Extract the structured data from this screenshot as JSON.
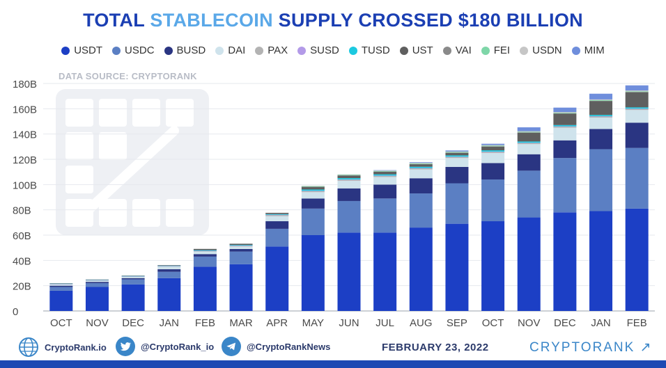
{
  "title": {
    "part1": "TOTAL ",
    "accent": "STABLECOIN",
    "part2": " SUPPLY CROSSED $180 BILLION"
  },
  "source": "DATA SOURCE: CRYPTORANK",
  "legend": [
    {
      "name": "USDT",
      "color": "#1c3fc5"
    },
    {
      "name": "USDC",
      "color": "#5b7fc3"
    },
    {
      "name": "BUSD",
      "color": "#2a3582"
    },
    {
      "name": "DAI",
      "color": "#cfe3ec"
    },
    {
      "name": "PAX",
      "color": "#b3b3b3"
    },
    {
      "name": "SUSD",
      "color": "#b39ae8"
    },
    {
      "name": "TUSD",
      "color": "#1cc9e0"
    },
    {
      "name": "UST",
      "color": "#5f5f5f"
    },
    {
      "name": "VAI",
      "color": "#8a8a8a"
    },
    {
      "name": "FEI",
      "color": "#7ed6a8"
    },
    {
      "name": "USDN",
      "color": "#c6c6c6"
    },
    {
      "name": "MIM",
      "color": "#6f8edc"
    }
  ],
  "footer": {
    "site": "CryptoRank.io",
    "twitter": "@CryptoRank_io",
    "telegram": "@CryptoRankNews",
    "date": "FEBRUARY 23, 2022",
    "brand": "CRYPTORANK ↗"
  },
  "chart_data": {
    "type": "bar",
    "stacked": true,
    "categories": [
      "OCT",
      "NOV",
      "DEC",
      "JAN",
      "FEB",
      "MAR",
      "APR",
      "MAY",
      "JUN",
      "JUL",
      "AUG",
      "SEP",
      "OCT",
      "NOV",
      "DEC",
      "JAN",
      "FEB"
    ],
    "y_ticks": [
      "0",
      "20B",
      "40B",
      "60B",
      "80B",
      "100B",
      "120B",
      "140B",
      "160B",
      "180B"
    ],
    "ylim": [
      0,
      180
    ],
    "grid": true,
    "series": [
      {
        "name": "USDT",
        "color": "#1c3fc5",
        "values": [
          16,
          19,
          21,
          26,
          35,
          37,
          51,
          60,
          62,
          62,
          66,
          69,
          71,
          74,
          78,
          79,
          81
        ]
      },
      {
        "name": "USDC",
        "color": "#5b7fc3",
        "values": [
          3,
          3,
          4,
          5,
          8,
          10,
          14,
          21,
          25,
          27,
          27,
          32,
          33,
          37,
          43,
          49,
          48
        ]
      },
      {
        "name": "BUSD",
        "color": "#2a3582",
        "values": [
          1,
          1,
          1,
          2,
          2,
          2,
          6,
          8,
          10,
          11,
          12,
          13,
          13,
          13,
          14,
          16,
          20
        ]
      },
      {
        "name": "DAI",
        "color": "#cfe3ec",
        "values": [
          1,
          1,
          1,
          2,
          2,
          2,
          4,
          5,
          6,
          6,
          7,
          7,
          8,
          8,
          10,
          9,
          10
        ]
      },
      {
        "name": "PAX",
        "color": "#b3b3b3",
        "values": [
          0.3,
          0.3,
          0.3,
          0.5,
          0.5,
          0.6,
          1,
          1,
          1,
          1,
          1,
          1,
          1,
          1,
          1,
          1,
          1
        ]
      },
      {
        "name": "SUSD",
        "color": "#b39ae8",
        "values": [
          0.1,
          0.1,
          0.1,
          0.1,
          0.1,
          0.1,
          0.1,
          0.1,
          0.1,
          0.1,
          0.1,
          0.1,
          0.1,
          0.1,
          0.1,
          0.1,
          0.1
        ]
      },
      {
        "name": "TUSD",
        "color": "#1cc9e0",
        "values": [
          0.3,
          0.3,
          0.3,
          0.3,
          0.5,
          0.5,
          0.5,
          1,
          1,
          1,
          1,
          1,
          1,
          1,
          1,
          1,
          1
        ]
      },
      {
        "name": "UST",
        "color": "#5f5f5f",
        "values": [
          0.2,
          0.2,
          0.3,
          0.4,
          1,
          1,
          1,
          2,
          2,
          2,
          2,
          2,
          3,
          7,
          9,
          11,
          12
        ]
      },
      {
        "name": "VAI",
        "color": "#8a8a8a",
        "values": [
          0,
          0,
          0,
          0,
          0,
          0,
          0.1,
          0.2,
          0.2,
          0.2,
          0.2,
          0.2,
          0.2,
          0.2,
          0.2,
          0.2,
          0.2
        ]
      },
      {
        "name": "FEI",
        "color": "#7ed6a8",
        "values": [
          0,
          0,
          0,
          0,
          0,
          0,
          0,
          0.5,
          0.5,
          0.5,
          0.5,
          0.5,
          0.5,
          0.5,
          0.5,
          0.5,
          0.5
        ]
      },
      {
        "name": "USDN",
        "color": "#c6c6c6",
        "values": [
          0,
          0,
          0,
          0,
          0,
          0,
          0,
          0.2,
          0.3,
          0.3,
          0.4,
          0.4,
          0.5,
          0.5,
          0.6,
          0.6,
          0.7
        ]
      },
      {
        "name": "MIM",
        "color": "#6f8edc",
        "values": [
          0,
          0,
          0,
          0,
          0,
          0,
          0,
          0,
          0,
          0.3,
          0.5,
          0.8,
          1,
          3,
          3.5,
          4.5,
          4
        ]
      }
    ]
  }
}
